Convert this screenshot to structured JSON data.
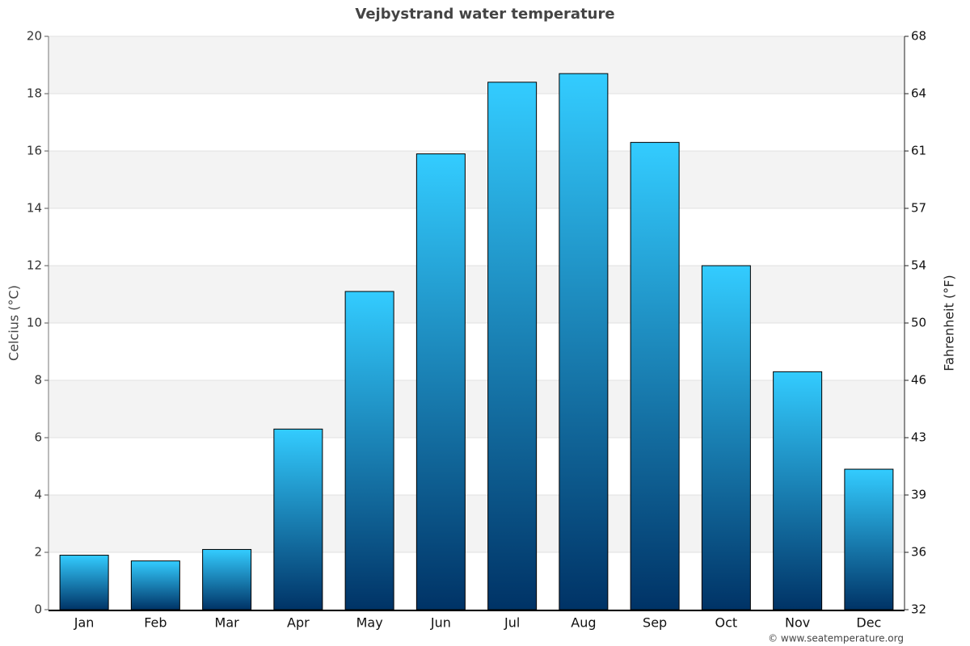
{
  "chart_data": {
    "type": "bar",
    "title": "Vejbystrand water temperature",
    "categories": [
      "Jan",
      "Feb",
      "Mar",
      "Apr",
      "May",
      "Jun",
      "Jul",
      "Aug",
      "Sep",
      "Oct",
      "Nov",
      "Dec"
    ],
    "values": [
      1.9,
      1.7,
      2.1,
      6.3,
      11.1,
      15.9,
      18.4,
      18.7,
      16.3,
      12.0,
      8.3,
      4.9
    ],
    "color": [
      "#33ccff",
      "#003366"
    ],
    "ylabel": "Celcius (°C)",
    "ylim": [
      0,
      20
    ],
    "yticks": [
      0,
      2,
      4,
      6,
      8,
      10,
      12,
      14,
      16,
      18,
      20
    ],
    "y2label": "Fahrenheit (°F)",
    "y2lim": [
      32,
      68
    ],
    "y2ticks": [
      32,
      {
        "value": 35.6,
        "label": "36"
      },
      {
        "value": 39.2,
        "label": "39"
      },
      {
        "value": 42.8,
        "label": "43"
      },
      {
        "value": 46.4,
        "label": "46"
      },
      50,
      {
        "value": 53.6,
        "label": "54"
      },
      {
        "value": 57.2,
        "label": "57"
      },
      {
        "value": 60.8,
        "label": "61"
      },
      {
        "value": 64.4,
        "label": "64"
      },
      68
    ],
    "grid": true,
    "credit": "© www.seatemperature.org"
  }
}
